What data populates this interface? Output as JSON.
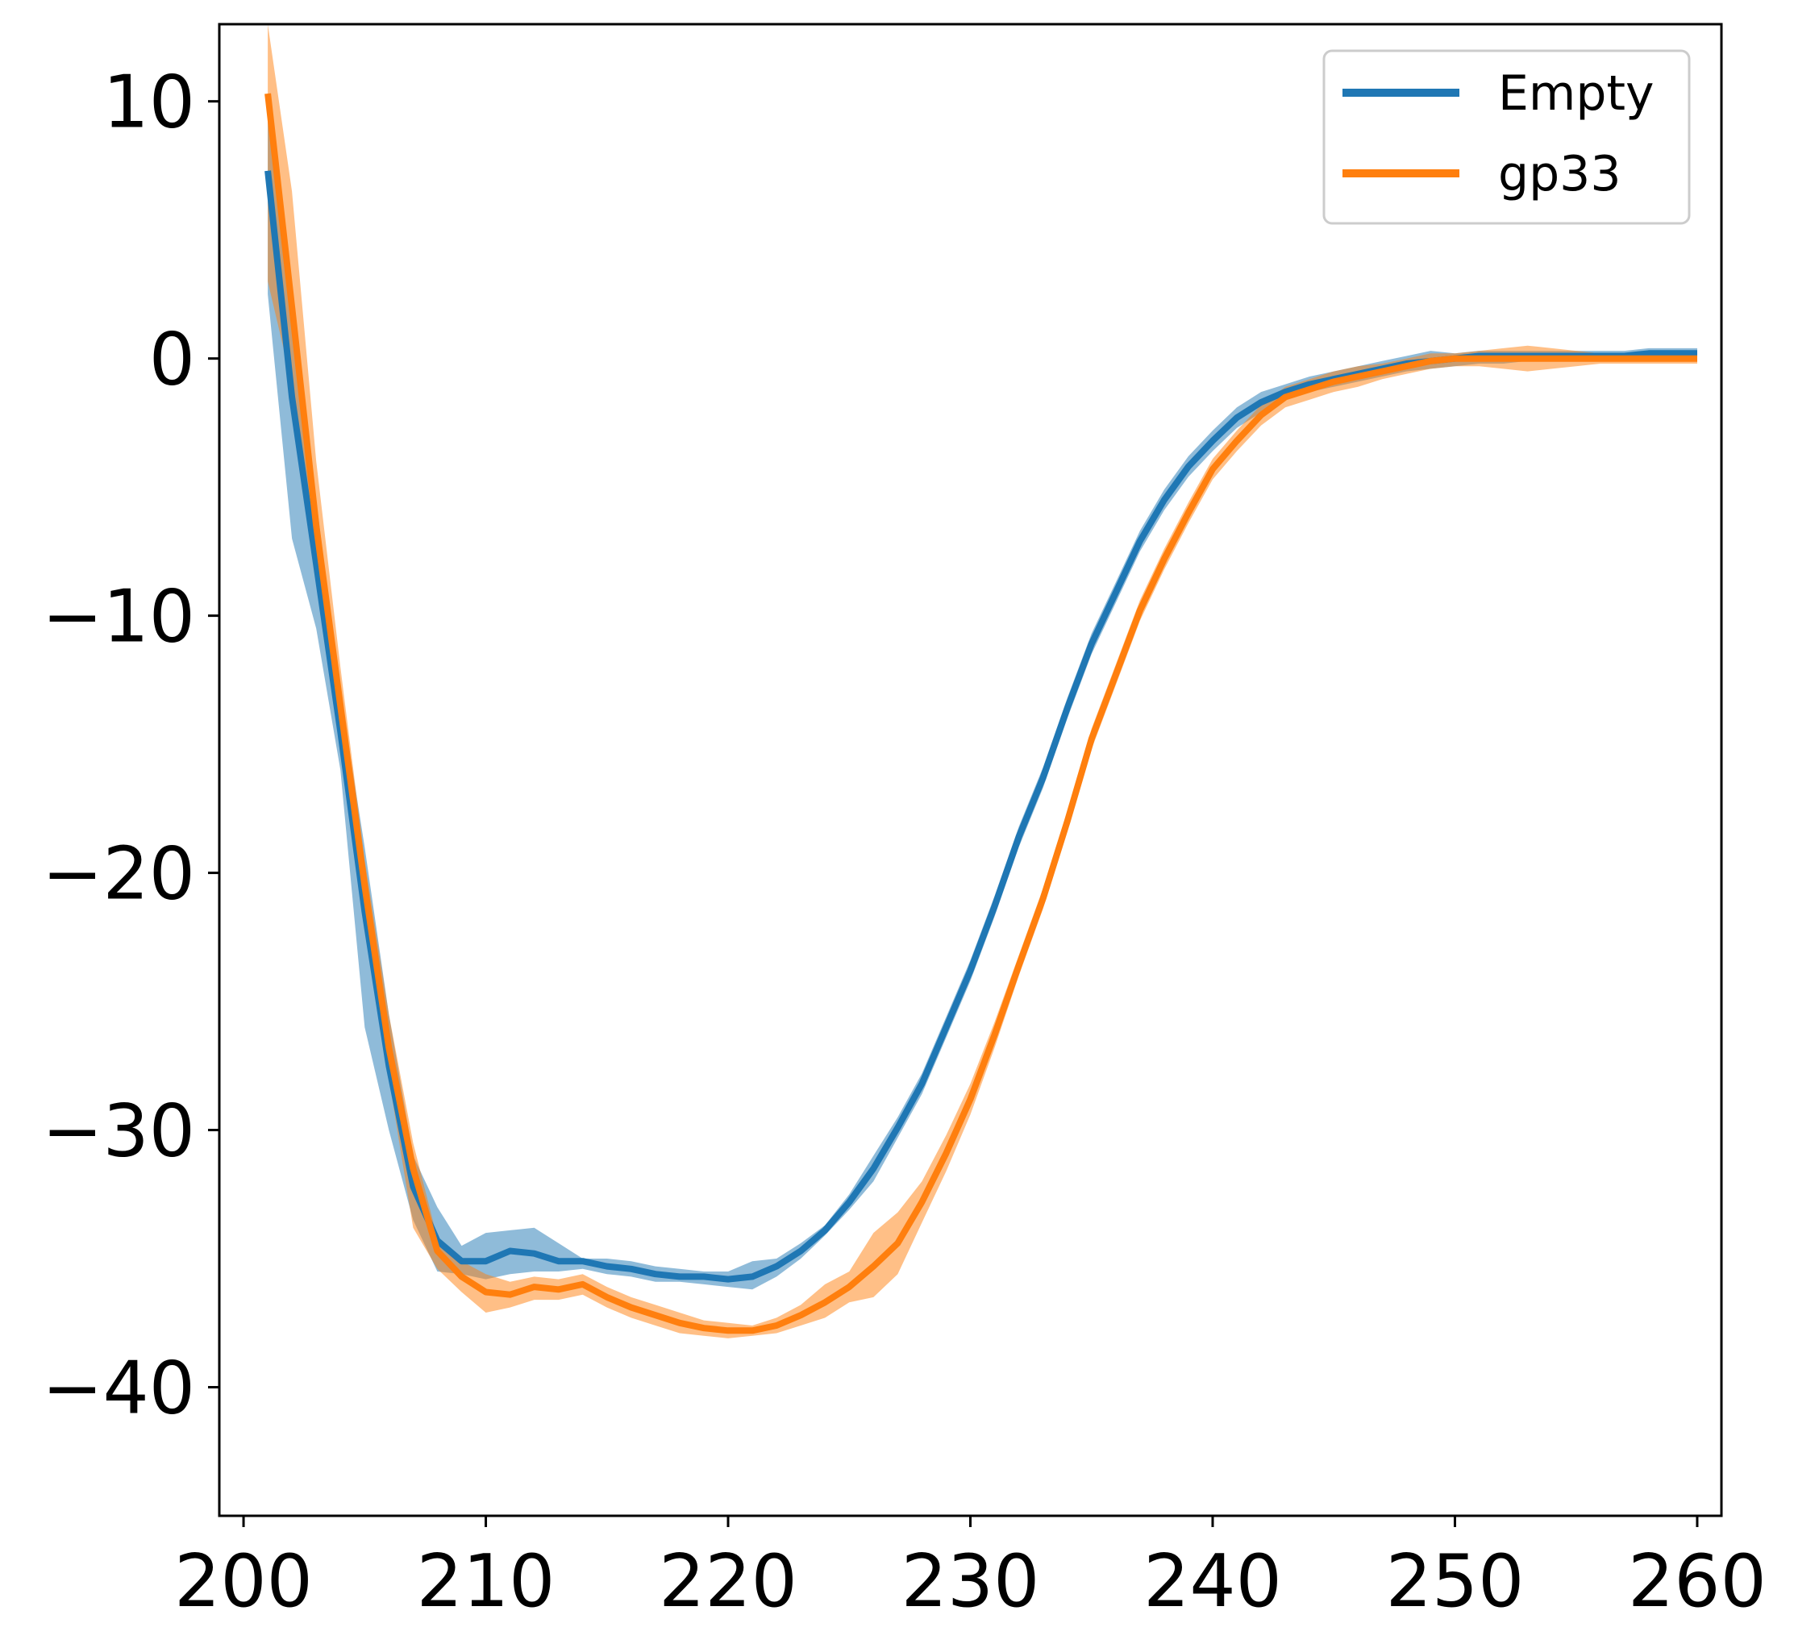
{
  "chart_data": {
    "type": "line",
    "title": "",
    "xlabel": "",
    "ylabel": "",
    "xlim": [
      199,
      261
    ],
    "ylim": [
      -45,
      13
    ],
    "grid": false,
    "legend_position": "top-right",
    "x_ticks": [
      200,
      210,
      220,
      230,
      240,
      250,
      260
    ],
    "x_tick_labels": [
      "200",
      "210",
      "220",
      "230",
      "240",
      "250",
      "260"
    ],
    "y_ticks": [
      10,
      0,
      -10,
      -20,
      -30,
      -40
    ],
    "y_tick_labels": [
      "10",
      "0",
      "−10",
      "−20",
      "−30",
      "−40"
    ],
    "series": [
      {
        "name": "Empty",
        "color": "#1f77b4",
        "band_color": "#1f77b4",
        "x": [
          201,
          202,
          203,
          204,
          205,
          206,
          207,
          208,
          209,
          210,
          211,
          212,
          213,
          214,
          215,
          216,
          217,
          218,
          219,
          220,
          221,
          222,
          223,
          224,
          225,
          226,
          227,
          228,
          229,
          230,
          231,
          232,
          233,
          234,
          235,
          236,
          237,
          238,
          239,
          240,
          241,
          242,
          243,
          244,
          245,
          246,
          247,
          248,
          249,
          250,
          251,
          252,
          253,
          254,
          255,
          256,
          257,
          258,
          259,
          260
        ],
        "y": [
          7.3,
          -1.5,
          -8.0,
          -14.5,
          -21.5,
          -27.5,
          -32.2,
          -34.3,
          -35.1,
          -35.1,
          -34.7,
          -34.8,
          -35.1,
          -35.1,
          -35.3,
          -35.4,
          -35.6,
          -35.7,
          -35.7,
          -35.8,
          -35.7,
          -35.3,
          -34.7,
          -33.9,
          -32.8,
          -31.5,
          -29.9,
          -28.2,
          -26.0,
          -23.8,
          -21.3,
          -18.6,
          -16.3,
          -13.6,
          -11.1,
          -9.1,
          -7.1,
          -5.5,
          -4.2,
          -3.2,
          -2.3,
          -1.7,
          -1.3,
          -1.0,
          -0.8,
          -0.6,
          -0.4,
          -0.2,
          -0.1,
          0.0,
          0.1,
          0.1,
          0.1,
          0.1,
          0.1,
          0.1,
          0.1,
          0.2,
          0.2,
          0.2
        ],
        "lower": [
          2.5,
          -7.0,
          -10.5,
          -16.0,
          -26.0,
          -30.0,
          -33.5,
          -35.5,
          -35.6,
          -35.8,
          -35.6,
          -35.5,
          -35.5,
          -35.4,
          -35.6,
          -35.7,
          -35.9,
          -35.9,
          -36.0,
          -36.1,
          -36.2,
          -35.7,
          -35.0,
          -34.1,
          -33.1,
          -32.0,
          -30.3,
          -28.6,
          -26.4,
          -24.2,
          -21.7,
          -19.0,
          -16.7,
          -14.0,
          -11.5,
          -9.5,
          -7.5,
          -5.9,
          -4.6,
          -3.6,
          -2.7,
          -2.1,
          -1.6,
          -1.3,
          -1.1,
          -0.9,
          -0.7,
          -0.5,
          -0.4,
          -0.3,
          -0.2,
          -0.2,
          -0.1,
          -0.1,
          -0.1,
          -0.1,
          -0.1,
          0.0,
          0.0,
          0.0
        ],
        "upper": [
          9.5,
          2.0,
          -5.5,
          -13.0,
          -19.0,
          -25.5,
          -31.0,
          -33.0,
          -34.5,
          -34.0,
          -33.9,
          -33.8,
          -34.4,
          -35.0,
          -35.0,
          -35.1,
          -35.3,
          -35.4,
          -35.5,
          -35.5,
          -35.1,
          -35.0,
          -34.4,
          -33.7,
          -32.5,
          -31.0,
          -29.5,
          -27.8,
          -25.6,
          -23.4,
          -20.9,
          -18.2,
          -15.9,
          -13.2,
          -10.7,
          -8.7,
          -6.7,
          -5.1,
          -3.8,
          -2.8,
          -1.9,
          -1.3,
          -1.0,
          -0.7,
          -0.5,
          -0.3,
          -0.1,
          0.1,
          0.3,
          0.2,
          0.3,
          0.3,
          0.3,
          0.3,
          0.3,
          0.3,
          0.3,
          0.4,
          0.4,
          0.4
        ]
      },
      {
        "name": "gp33",
        "color": "#ff7f0e",
        "band_color": "#ff7f0e",
        "x": [
          201,
          202,
          203,
          204,
          205,
          206,
          207,
          208,
          209,
          210,
          211,
          212,
          213,
          214,
          215,
          216,
          217,
          218,
          219,
          220,
          221,
          222,
          223,
          224,
          225,
          226,
          227,
          228,
          229,
          230,
          231,
          232,
          233,
          234,
          235,
          236,
          237,
          238,
          239,
          240,
          241,
          242,
          243,
          244,
          245,
          246,
          247,
          248,
          249,
          250,
          251,
          252,
          253,
          254,
          255,
          256,
          257,
          258,
          259,
          260
        ],
        "y": [
          10.3,
          2.0,
          -6.5,
          -13.5,
          -20.5,
          -26.8,
          -31.5,
          -34.7,
          -35.7,
          -36.3,
          -36.4,
          -36.1,
          -36.2,
          -36.0,
          -36.5,
          -36.9,
          -37.2,
          -37.5,
          -37.7,
          -37.8,
          -37.8,
          -37.6,
          -37.2,
          -36.7,
          -36.1,
          -35.3,
          -34.4,
          -32.8,
          -30.9,
          -28.8,
          -26.3,
          -23.6,
          -21.0,
          -18.0,
          -14.8,
          -12.3,
          -9.8,
          -7.8,
          -6.0,
          -4.3,
          -3.2,
          -2.2,
          -1.5,
          -1.2,
          -0.9,
          -0.7,
          -0.5,
          -0.3,
          -0.1,
          0.0,
          0.0,
          0.0,
          0.0,
          0.0,
          0.0,
          0.0,
          0.0,
          0.0,
          0.0,
          0.0
        ],
        "lower": [
          3.0,
          -1.0,
          -8.0,
          -15.0,
          -22.0,
          -28.0,
          -33.8,
          -35.4,
          -36.3,
          -37.1,
          -36.9,
          -36.6,
          -36.6,
          -36.4,
          -36.9,
          -37.3,
          -37.6,
          -37.9,
          -38.0,
          -38.1,
          -38.0,
          -37.9,
          -37.6,
          -37.3,
          -36.7,
          -36.5,
          -35.6,
          -33.6,
          -31.6,
          -29.4,
          -26.8,
          -24.0,
          -21.4,
          -18.4,
          -15.2,
          -12.7,
          -10.2,
          -8.2,
          -6.4,
          -4.7,
          -3.6,
          -2.6,
          -1.9,
          -1.6,
          -1.3,
          -1.1,
          -0.8,
          -0.6,
          -0.4,
          -0.3,
          -0.3,
          -0.4,
          -0.5,
          -0.4,
          -0.3,
          -0.2,
          -0.2,
          -0.2,
          -0.2,
          -0.2
        ],
        "upper": [
          13.0,
          6.5,
          -4.0,
          -12.0,
          -19.5,
          -25.5,
          -30.5,
          -34.2,
          -35.1,
          -35.6,
          -35.9,
          -35.7,
          -35.8,
          -35.6,
          -36.1,
          -36.5,
          -36.8,
          -37.1,
          -37.4,
          -37.5,
          -37.6,
          -37.3,
          -36.8,
          -36.0,
          -35.5,
          -34.0,
          -33.2,
          -32.0,
          -30.2,
          -28.2,
          -25.8,
          -23.2,
          -20.6,
          -17.6,
          -14.4,
          -11.9,
          -9.4,
          -7.4,
          -5.6,
          -3.9,
          -2.8,
          -1.8,
          -1.1,
          -0.8,
          -0.5,
          -0.3,
          -0.2,
          0.0,
          0.2,
          0.2,
          0.3,
          0.4,
          0.5,
          0.4,
          0.3,
          0.2,
          0.2,
          0.2,
          0.2,
          0.2
        ]
      }
    ]
  }
}
